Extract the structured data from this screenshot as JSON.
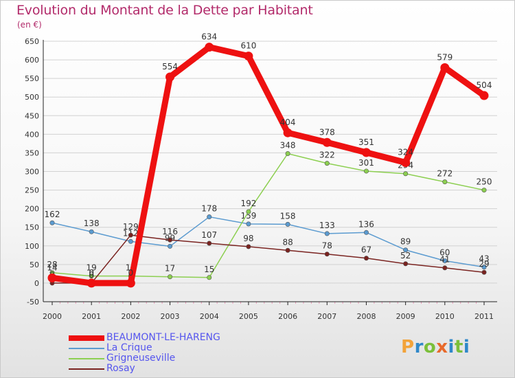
{
  "title": "Evolution du Montant de la Dette par Habitant",
  "subtitle": "(en €)",
  "logo": {
    "text": "Proxiti",
    "letter_colors": [
      "#f2a33a",
      "#2f88c9",
      "#7bbf3a",
      "#e86a2b",
      "#2f88c9",
      "#7bbf3a",
      "#2f88c9"
    ]
  },
  "chart_data": {
    "type": "line",
    "x": [
      "2000",
      "2001",
      "2002",
      "2003",
      "2004",
      "2005",
      "2006",
      "2007",
      "2008",
      "2009",
      "2010",
      "2011"
    ],
    "ylim": [
      -50,
      650
    ],
    "yticks": [
      -50,
      0,
      50,
      100,
      150,
      200,
      250,
      300,
      350,
      400,
      450,
      500,
      550,
      600,
      650
    ],
    "grid": "horizontal",
    "legend_position": "bottom-left",
    "series": [
      {
        "name": "La Crique",
        "color": "#5b9bd0",
        "values": [
          162,
          138,
          112,
          99,
          178,
          159,
          158,
          133,
          136,
          89,
          60,
          43
        ],
        "labels": [
          "162",
          "138",
          "112",
          "99",
          "178",
          "159",
          "158",
          "133",
          "136",
          "89",
          "60",
          "43"
        ]
      },
      {
        "name": "Grigneuseville",
        "color": "#8ccf50",
        "values": [
          28,
          19,
          19,
          17,
          15,
          192,
          348,
          322,
          301,
          294,
          272,
          250
        ],
        "labels": [
          "28",
          "19",
          "19",
          "17",
          "15",
          "192",
          "348",
          "322",
          "301",
          "294",
          "272",
          "250"
        ]
      },
      {
        "name": "Rosay",
        "color": "#7a2320",
        "values": [
          0,
          0,
          129,
          116,
          107,
          98,
          88,
          78,
          67,
          52,
          41,
          29
        ],
        "labels": [
          "0",
          "0",
          "129",
          "116",
          "107",
          "98",
          "88",
          "78",
          "67",
          "52",
          "41",
          "29"
        ]
      },
      {
        "name": "BEAUMONT-LE-HARENG",
        "color": "#ee1111",
        "values": [
          14,
          0,
          0,
          554,
          634,
          610,
          404,
          378,
          351,
          324,
          579,
          504
        ],
        "labels": [
          "14",
          "0",
          "0",
          "554",
          "634",
          "610",
          "404",
          "378",
          "351",
          "324",
          "579",
          "504"
        ]
      }
    ],
    "legend_order": [
      "BEAUMONT-LE-HARENG",
      "La Crique",
      "Grigneuseville",
      "Rosay"
    ],
    "legend_colors": {
      "BEAUMONT-LE-HARENG": "#5555ee",
      "La Crique": "#5555ee",
      "Grigneuseville": "#5555ee",
      "Rosay": "#5555ee"
    }
  }
}
